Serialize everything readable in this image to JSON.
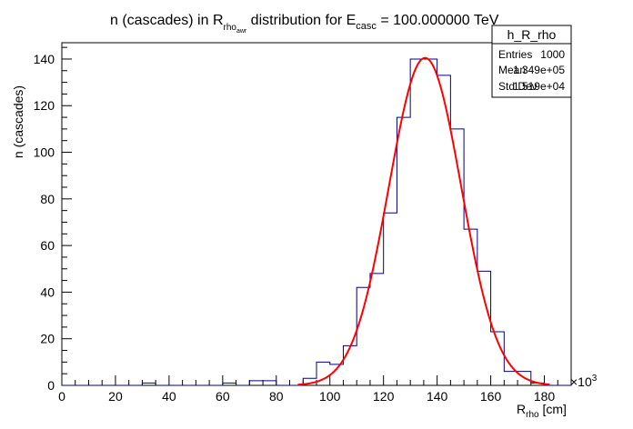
{
  "title": {
    "prefix": "n (cascades) in R",
    "sub1": "rho",
    "sub2": "awr",
    "middle": " distribution for E",
    "sub3": "casc",
    "suffix": " = 100.000000 TeV"
  },
  "axes": {
    "ylabel": "n (cascades)",
    "xlabel_main": "R",
    "xlabel_sub": "rho",
    "xlabel_unit": " [cm]",
    "x_multiplier_base": "×10",
    "x_multiplier_exp": "3"
  },
  "stats": {
    "name": "h_R_rho",
    "rows": [
      {
        "label": "Entries",
        "value": "1000"
      },
      {
        "label": "Mean",
        "value": "1.349e+05"
      },
      {
        "label": "Std Dev",
        "value": "1.519e+04"
      }
    ]
  },
  "chart_data": {
    "type": "histogram",
    "xlim": [
      0,
      190
    ],
    "ylim": [
      0,
      147
    ],
    "x_ticks": [
      0,
      20,
      40,
      60,
      80,
      100,
      120,
      140,
      160,
      180
    ],
    "y_ticks": [
      0,
      20,
      40,
      60,
      80,
      100,
      120,
      140
    ],
    "bin_width": 5,
    "bins": [
      {
        "x0": 30,
        "count": 1
      },
      {
        "x0": 60,
        "count": 1
      },
      {
        "x0": 70,
        "count": 2
      },
      {
        "x0": 75,
        "count": 2
      },
      {
        "x0": 90,
        "count": 3
      },
      {
        "x0": 95,
        "count": 10
      },
      {
        "x0": 100,
        "count": 9
      },
      {
        "x0": 105,
        "count": 17
      },
      {
        "x0": 110,
        "count": 42
      },
      {
        "x0": 115,
        "count": 48
      },
      {
        "x0": 120,
        "count": 74
      },
      {
        "x0": 125,
        "count": 115
      },
      {
        "x0": 130,
        "count": 140
      },
      {
        "x0": 135,
        "count": 140
      },
      {
        "x0": 140,
        "count": 133
      },
      {
        "x0": 145,
        "count": 110
      },
      {
        "x0": 150,
        "count": 67
      },
      {
        "x0": 155,
        "count": 49
      },
      {
        "x0": 160,
        "count": 23
      },
      {
        "x0": 165,
        "count": 6
      },
      {
        "x0": 170,
        "count": 6
      },
      {
        "x0": 175,
        "count": 1
      }
    ],
    "fit": {
      "type": "gaussian",
      "amplitude": 140.5,
      "mean": 135.5,
      "sigma": 13.5,
      "x_range": [
        88,
        182
      ]
    },
    "colors": {
      "histogram": "#000080",
      "fit": "#ff0000",
      "frame": "#000000"
    }
  }
}
